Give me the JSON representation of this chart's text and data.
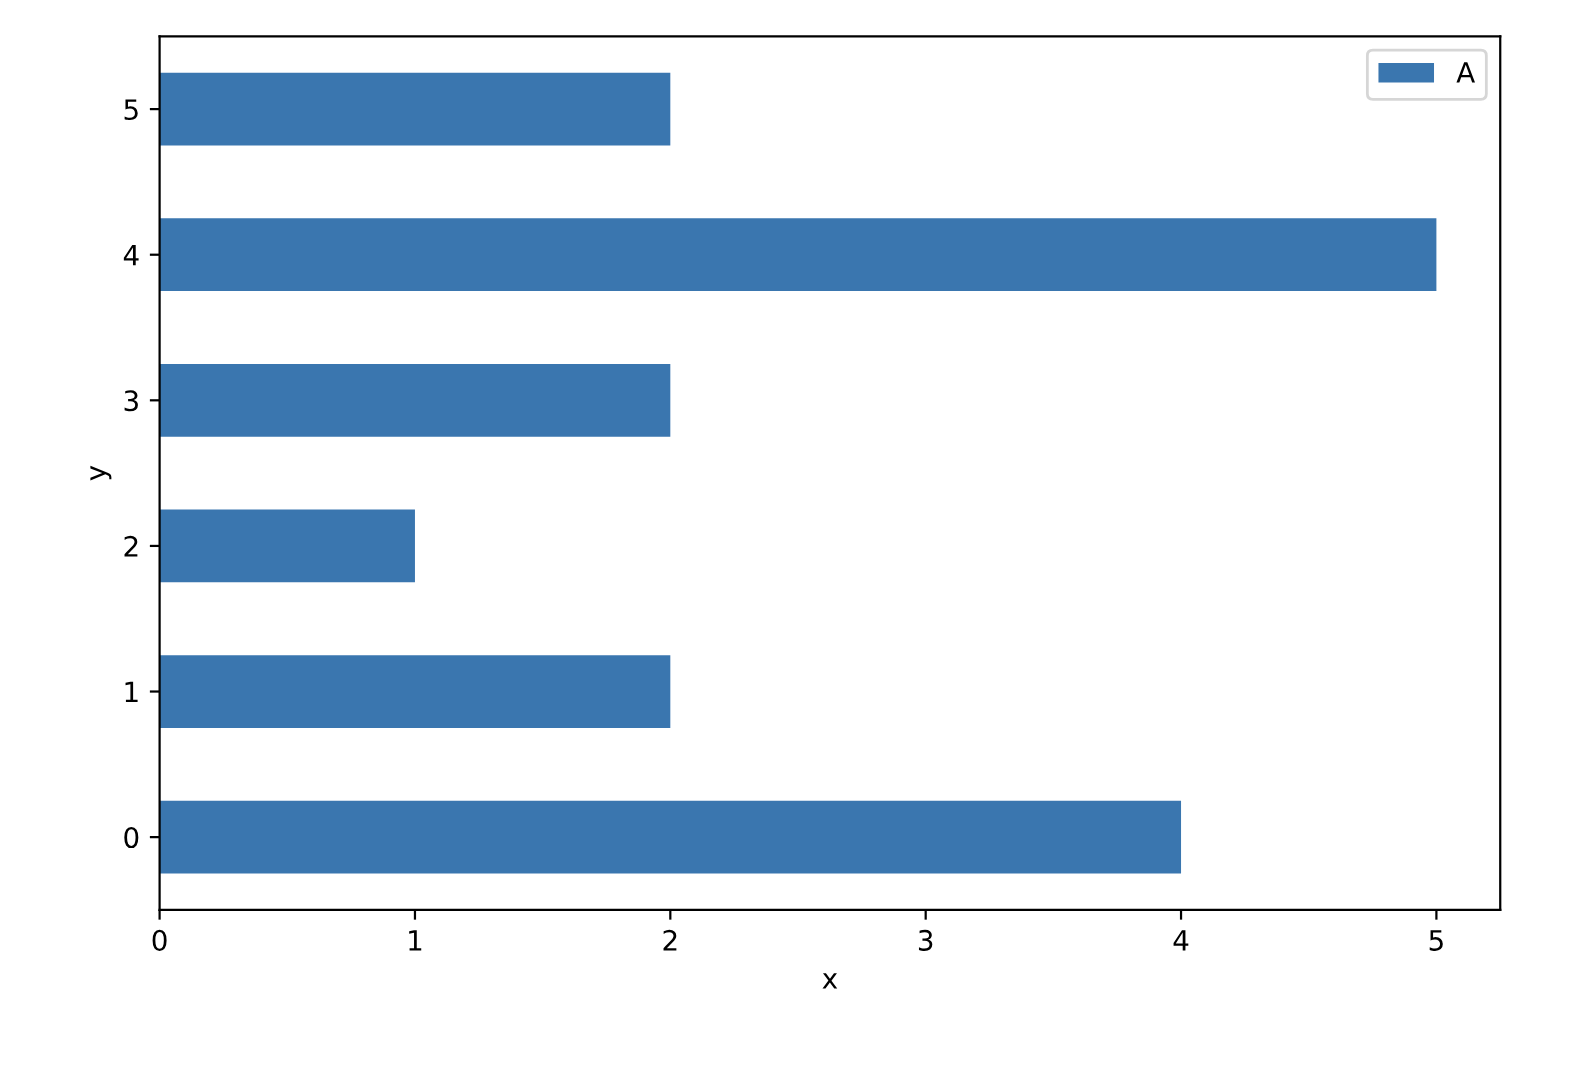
{
  "chart_data": {
    "type": "bar",
    "orientation": "horizontal",
    "xlabel": "x",
    "ylabel": "y",
    "categories": [
      "5",
      "4",
      "3",
      "2",
      "1",
      "0"
    ],
    "series": [
      {
        "name": "A",
        "color": "#3a76af",
        "values": [
          2,
          5,
          2,
          1,
          2,
          4
        ]
      }
    ],
    "xlim": [
      0,
      5.25
    ],
    "xticks": [
      0,
      1,
      2,
      3,
      4,
      5
    ],
    "legend": "top right",
    "grid": false
  }
}
